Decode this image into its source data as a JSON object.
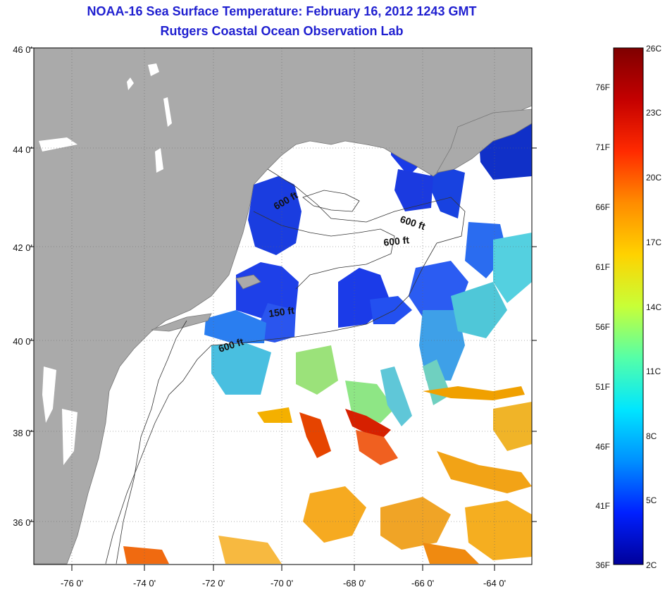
{
  "title": {
    "line1": "NOAA-16 Sea Surface Temperature:  February 16, 2012 1243 GMT",
    "line2": "Rutgers Coastal Ocean Observation Lab"
  },
  "map": {
    "lat_labels": [
      "46 0'",
      "44 0'",
      "42 0'",
      "40 0'",
      "38 0'",
      "36 0'"
    ],
    "lon_labels": [
      "-76 0'",
      "-74 0'",
      "-72 0'",
      "-70 0'",
      "-68 0'",
      "-66 0'",
      "-64 0'"
    ],
    "depth_labels": [
      "600 ft",
      "600 ft",
      "600 ft",
      "150 ft",
      "600 ft"
    ],
    "colors": {
      "land": "#aaaaaa",
      "ocean_no_data": "#ffffff",
      "grid": "#666666"
    }
  },
  "colorbar": {
    "fahrenheit": [
      "76F",
      "71F",
      "66F",
      "61F",
      "56F",
      "51F",
      "46F",
      "41F",
      "36F"
    ],
    "celsius": [
      "26C",
      "23C",
      "20C",
      "17C",
      "14C",
      "11C",
      "8C",
      "5C",
      "2C"
    ],
    "gradient": [
      "#7f0000",
      "#c40000",
      "#ff2a00",
      "#ff8c00",
      "#ffd200",
      "#c8ff37",
      "#55ffa8",
      "#00e6ff",
      "#0090ff",
      "#0020ff",
      "#00009a"
    ]
  }
}
